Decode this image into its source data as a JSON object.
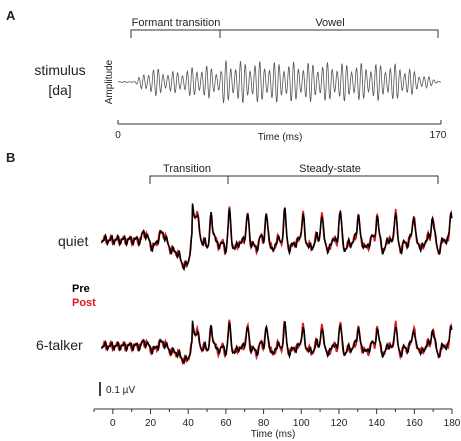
{
  "panel_a": {
    "letter": "A",
    "row_label_line1": "stimulus",
    "row_label_line2": "[da]",
    "ylabel": "Amplitude",
    "xlabel": "Time (ms)",
    "x_start": "0",
    "x_end": "170",
    "bracket_1": "Formant transition",
    "bracket_2": "Vowel"
  },
  "panel_b": {
    "letter": "B",
    "bracket_1": "Transition",
    "bracket_2": "Steady-state",
    "legend_pre": "Pre",
    "legend_post": "Post",
    "scale_label": "0.1 µV",
    "xlabel": "Time (ms)",
    "row_1": "quiet",
    "row_2": "6-talker"
  },
  "chart_data": [
    {
      "type": "line",
      "panel": "A",
      "series": [
        {
          "values": []
        }
      ],
      "xlabel": "Time (ms)",
      "ylabel": "Amplitude",
      "xlim": [
        0,
        170
      ],
      "segments": [
        {
          "label": "Formant transition",
          "x_range": [
            10,
            60
          ]
        },
        {
          "label": "Vowel",
          "x_range": [
            60,
            170
          ]
        }
      ]
    },
    {
      "type": "line",
      "panel": "B",
      "xlabel": "Time (ms)",
      "xlim": [
        -10,
        180
      ],
      "x_ticks": [
        0,
        20,
        40,
        60,
        80,
        100,
        120,
        140,
        160,
        180
      ],
      "segments": [
        {
          "label": "Transition",
          "x_range": [
            20,
            60
          ]
        },
        {
          "label": "Steady-state",
          "x_range": [
            60,
            180
          ]
        }
      ],
      "conditions": [
        "quiet",
        "6-talker"
      ],
      "series": [
        {
          "name": "Pre",
          "color": "#000000"
        },
        {
          "name": "Post",
          "color": "#e41a1c"
        }
      ],
      "scale_bar": "0.1 µV"
    }
  ]
}
